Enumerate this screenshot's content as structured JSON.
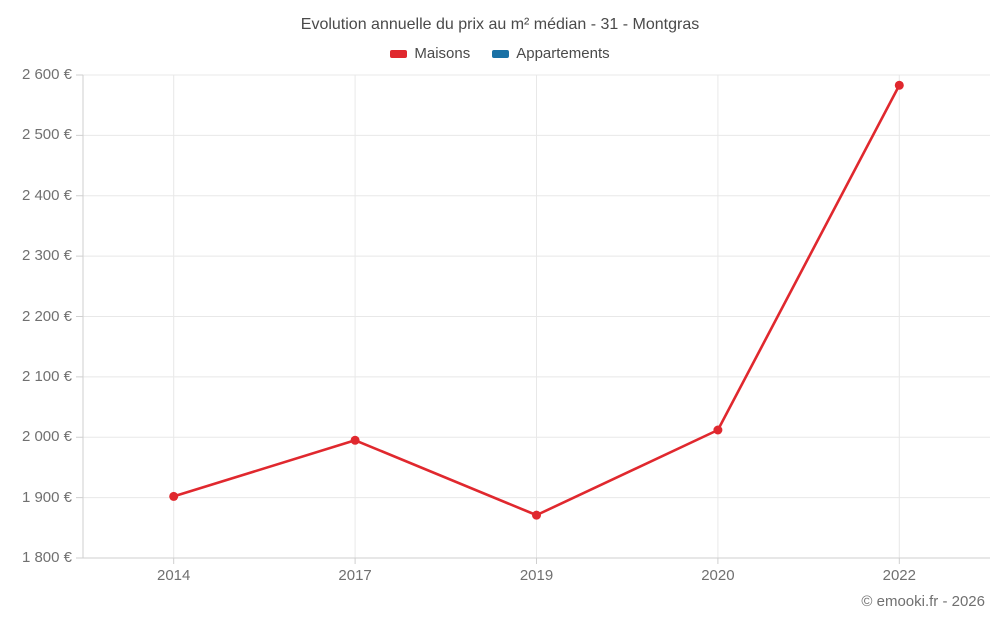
{
  "title": "Evolution annuelle du prix au m² médian - 31 - Montgras",
  "legend": [
    {
      "label": "Maisons",
      "color": "#e0282e"
    },
    {
      "label": "Appartements",
      "color": "#1a71a5"
    }
  ],
  "footer": {
    "copyright": "© emooki.fr - 2026"
  },
  "colors": {
    "background": "#ffffff",
    "title_text": "#4a4a4a",
    "axis_text": "#707070",
    "gridline": "#e8e8e8",
    "axis_line": "#cfcfcf",
    "maisons_red": "#e0282e",
    "appartements_blue": "#1a71a5"
  },
  "chart_data": {
    "type": "line",
    "title": "Evolution annuelle du prix au m² médian - 31 - Montgras",
    "categories": [
      "2014",
      "2017",
      "2019",
      "2020",
      "2022"
    ],
    "series": [
      {
        "name": "Maisons",
        "color": "#e0282e",
        "values": [
          1902,
          1995,
          1871,
          2012,
          2583
        ]
      },
      {
        "name": "Appartements",
        "color": "#1a71a5",
        "values": [
          null,
          null,
          null,
          null,
          null
        ]
      }
    ],
    "xlabel": "",
    "ylabel": "",
    "ylim": [
      1800,
      2600
    ],
    "ytick_step": 100,
    "ytick_labels": [
      "1 800 €",
      "1 900 €",
      "2 000 €",
      "2 100 €",
      "2 200 €",
      "2 300 €",
      "2 400 €",
      "2 500 €",
      "2 600 €"
    ],
    "grid": true,
    "legend_position": "top",
    "currency": "€"
  }
}
